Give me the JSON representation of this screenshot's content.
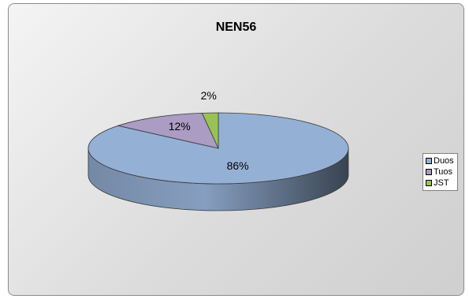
{
  "chart_data": {
    "type": "pie",
    "title": "NEN56",
    "three_d": true,
    "start_angle_deg": 0,
    "direction": "clockwise",
    "slices": [
      {
        "name": "Duos",
        "value": 86,
        "label": "86%",
        "color": "#95b0d5"
      },
      {
        "name": "Tuos",
        "value": 12,
        "label": "12%",
        "color": "#aa9cc3"
      },
      {
        "name": "JST",
        "value": 2,
        "label": "2%",
        "color": "#99c255"
      }
    ],
    "legend": {
      "position": "right",
      "entries": [
        "Duos",
        "Tuos",
        "JST"
      ]
    }
  }
}
